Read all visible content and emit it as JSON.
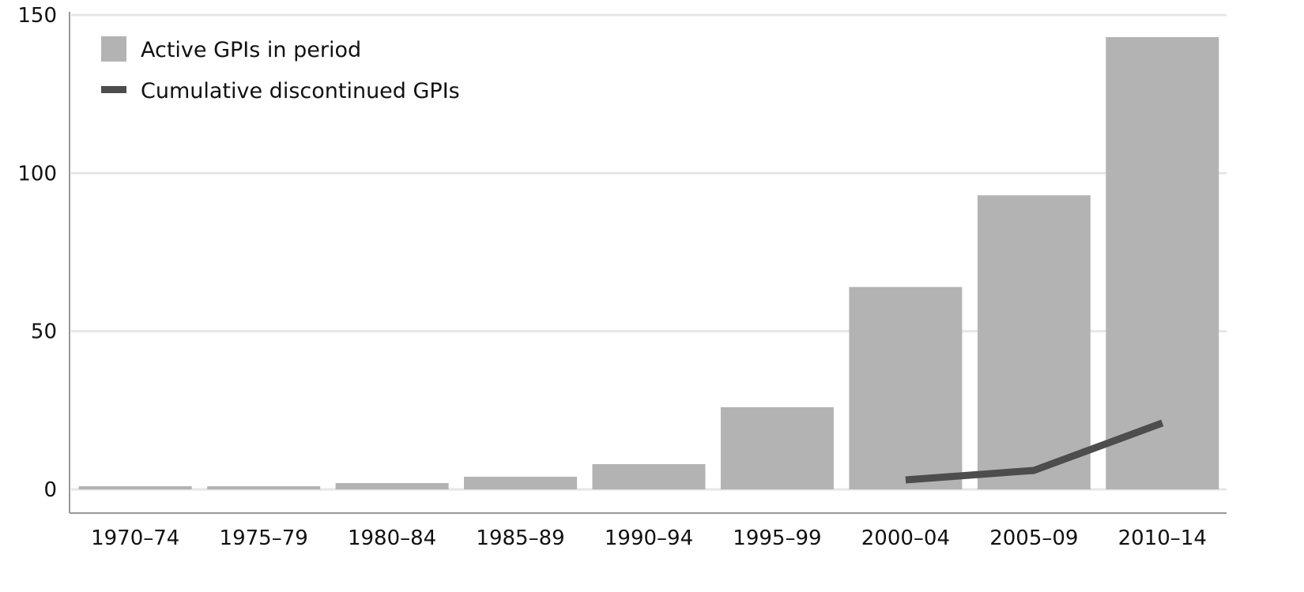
{
  "chart_data": {
    "type": "bar",
    "title": "",
    "xlabel": "",
    "ylabel": "",
    "categories": [
      "1970–74",
      "1975–79",
      "1980–84",
      "1985–89",
      "1990–94",
      "1995–99",
      "2000–04",
      "2005–09",
      "2010–14"
    ],
    "series": [
      {
        "name": "Active GPIs in period",
        "type": "bar",
        "color": "#b3b3b3",
        "values": [
          1,
          1,
          2,
          4,
          8,
          26,
          64,
          93,
          143
        ]
      },
      {
        "name": "Cumulative discontinued GPIs",
        "type": "line",
        "color": "#4d4d4d",
        "values": [
          null,
          null,
          null,
          null,
          null,
          null,
          3,
          6,
          21
        ]
      }
    ],
    "ylim": [
      0,
      150
    ],
    "yticks": [
      0,
      50,
      100,
      150
    ],
    "grid": true,
    "legend_position": "top-left"
  }
}
